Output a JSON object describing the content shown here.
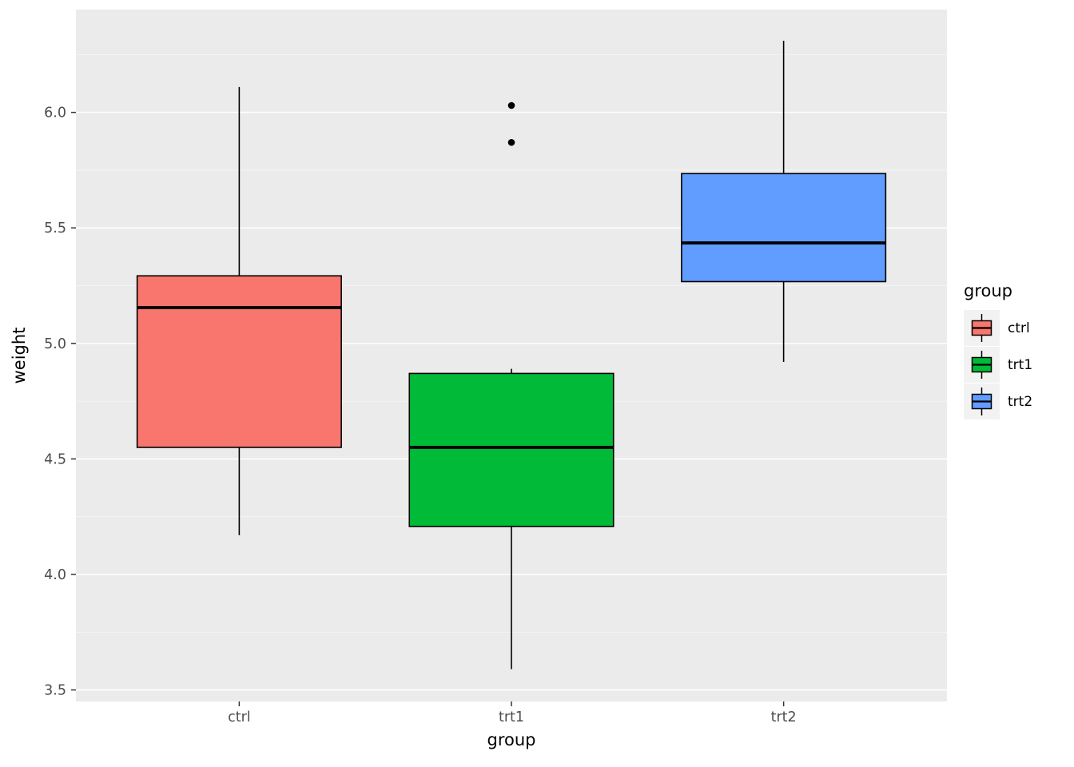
{
  "figure": {
    "background": "#FFFFFF",
    "panel_background": "#EBEBEB",
    "grid_major_color": "#FFFFFF",
    "grid_minor_color": "#F7F7F7",
    "tick_label_color": "#4D4D4D",
    "axis_title_color": "#000000",
    "legend_key_background": "#F2F2F2"
  },
  "chart_data": {
    "type": "boxplot",
    "title": "",
    "xlabel": "group",
    "ylabel": "weight",
    "categories": [
      "ctrl",
      "trt1",
      "trt2"
    ],
    "y_ticks": [
      3.5,
      4.0,
      4.5,
      5.0,
      5.5,
      6.0
    ],
    "ylim": [
      3.45,
      6.445
    ],
    "grid": true,
    "series": [
      {
        "name": "ctrl",
        "fill": "#F8766D",
        "whisker_low": 4.17,
        "q1": 4.55,
        "median": 5.155,
        "q3": 5.2925,
        "whisker_high": 6.11,
        "outliers": []
      },
      {
        "name": "trt1",
        "fill": "#00BA38",
        "whisker_low": 3.59,
        "q1": 4.2075,
        "median": 4.55,
        "q3": 4.87,
        "whisker_high": 4.89,
        "outliers": [
          5.87,
          6.03
        ]
      },
      {
        "name": "trt2",
        "fill": "#619CFF",
        "whisker_low": 4.92,
        "q1": 5.2675,
        "median": 5.435,
        "q3": 5.735,
        "whisker_high": 6.31,
        "outliers": []
      }
    ],
    "legend": {
      "title": "group",
      "position": "right",
      "entries": [
        {
          "label": "ctrl",
          "fill": "#F8766D"
        },
        {
          "label": "trt1",
          "fill": "#00BA38"
        },
        {
          "label": "trt2",
          "fill": "#619CFF"
        }
      ]
    }
  }
}
